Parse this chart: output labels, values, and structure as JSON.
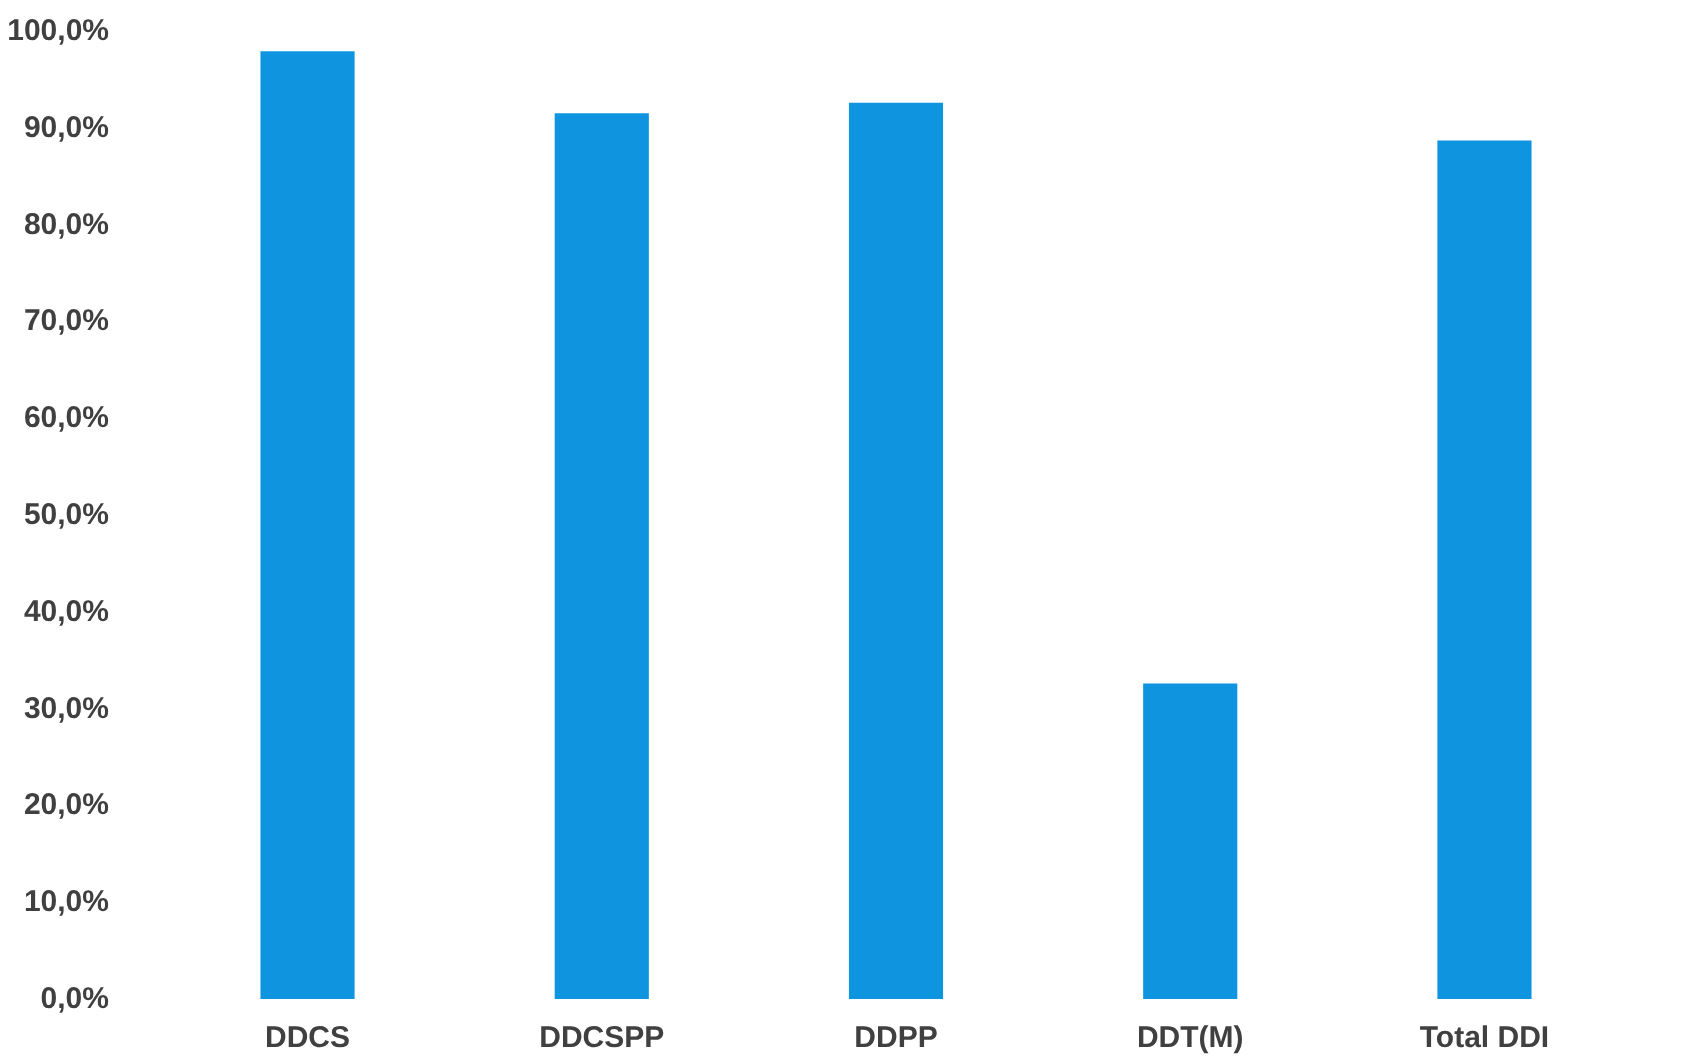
{
  "chart_data": {
    "type": "bar",
    "categories": [
      "DDCS",
      "DDCSPP",
      "DDPP",
      "DDT(M)",
      "Total DDI"
    ],
    "values": [
      97.9,
      91.5,
      92.6,
      32.6,
      88.7
    ],
    "color": "#0f95e0",
    "ylim": [
      0,
      100
    ],
    "yticks": [
      {
        "value": 0,
        "label": "0,0%"
      },
      {
        "value": 10,
        "label": "10,0%"
      },
      {
        "value": 20,
        "label": "20,0%"
      },
      {
        "value": 30,
        "label": "30,0%"
      },
      {
        "value": 40,
        "label": "40,0%"
      },
      {
        "value": 50,
        "label": "50,0%"
      },
      {
        "value": 60,
        "label": "60,0%"
      },
      {
        "value": 70,
        "label": "70,0%"
      },
      {
        "value": 80,
        "label": "80,0%"
      },
      {
        "value": 90,
        "label": "90,0%"
      },
      {
        "value": 100,
        "label": "100,0%"
      }
    ],
    "grid": false
  }
}
